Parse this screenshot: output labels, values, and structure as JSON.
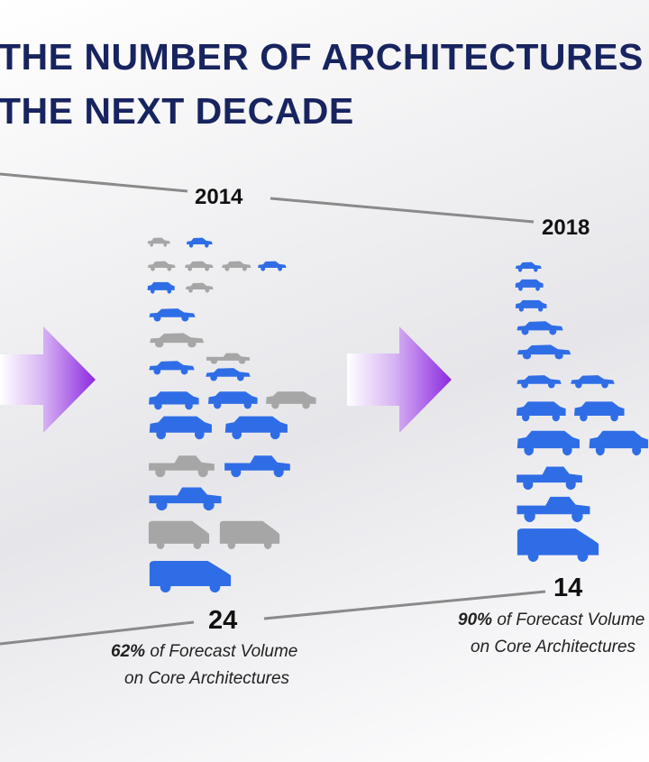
{
  "title": {
    "line1": "THE NUMBER OF ARCHITECTURES",
    "line2": "THE NEXT DECADE"
  },
  "panels": [
    {
      "year": "2014",
      "count": "24",
      "pct": "62%",
      "note_rest": "of Forecast Volume",
      "note_line2": "on Core Architectures"
    },
    {
      "year": "2018",
      "count": "14",
      "pct": "90%",
      "note_rest": "of Forecast Volume",
      "note_line2": "on Core Architectures"
    }
  ],
  "colors": {
    "core_blue": "#2f6de6",
    "non_core_gray": "#a6a6a6",
    "arrow_purple": "#8b2ae0",
    "title_navy": "#17245f"
  },
  "icons": [
    "car-icon",
    "suv-icon",
    "pickup-icon",
    "van-icon",
    "arrow-icon"
  ]
}
